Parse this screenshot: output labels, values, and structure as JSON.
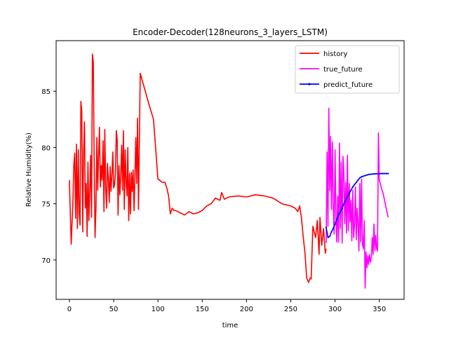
{
  "chart_data": {
    "type": "line",
    "title": "Encoder-Decoder(128neurons_3_layers_LSTM)",
    "xlabel": "time",
    "ylabel": "Relative Humidity(%)",
    "xlim": [
      -15,
      378
    ],
    "ylim": [
      66.5,
      89.5
    ],
    "xticks": [
      0,
      50,
      100,
      150,
      200,
      250,
      300,
      350
    ],
    "yticks": [
      70,
      75,
      80,
      85
    ],
    "grid": false,
    "legend_position": "top-right",
    "series": [
      {
        "name": "history",
        "color": "#ff0000",
        "x": [
          0,
          2,
          4,
          5,
          6,
          7,
          8,
          9,
          10,
          11,
          12,
          13,
          14,
          15,
          16,
          17,
          18,
          19,
          20,
          21,
          22,
          23,
          24,
          25,
          26,
          27,
          28,
          29,
          30,
          31,
          32,
          33,
          34,
          35,
          36,
          37,
          38,
          39,
          40,
          41,
          42,
          43,
          44,
          45,
          46,
          47,
          48,
          49,
          50,
          51,
          52,
          53,
          54,
          55,
          56,
          57,
          58,
          59,
          60,
          61,
          62,
          63,
          64,
          65,
          66,
          67,
          68,
          69,
          70,
          71,
          72,
          73,
          74,
          75,
          76,
          77,
          78,
          80,
          85,
          90,
          95,
          100,
          105,
          108,
          110,
          112,
          114,
          116,
          118,
          120,
          125,
          130,
          135,
          140,
          145,
          150,
          155,
          160,
          165,
          170,
          172,
          175,
          180,
          190,
          200,
          210,
          220,
          230,
          240,
          250,
          255,
          258,
          260,
          262,
          264,
          266,
          268,
          270,
          272,
          273,
          275,
          278,
          280,
          282,
          283,
          285,
          287,
          289,
          290
        ],
        "y": [
          77.1,
          71.4,
          75.3,
          78.4,
          79.5,
          73.7,
          80.3,
          72.8,
          79.8,
          74.2,
          73.1,
          84.1,
          83.2,
          72.5,
          79.4,
          82.3,
          74.6,
          76.8,
          72.1,
          78.7,
          73.5,
          76.1,
          79.3,
          73.8,
          88.3,
          87.6,
          78.2,
          72.0,
          74.6,
          80.9,
          76.2,
          79.4,
          81.8,
          76.5,
          78.4,
          77.1,
          80.6,
          74.3,
          81.6,
          76.3,
          74.6,
          78.6,
          77.2,
          75.1,
          78.3,
          76.1,
          77.5,
          79.6,
          76.4,
          76.7,
          77.8,
          81.5,
          80.7,
          74.0,
          78.4,
          75.8,
          77.4,
          80.2,
          76.2,
          81.5,
          74.5,
          79.8,
          77.0,
          75.7,
          80.0,
          73.5,
          77.7,
          74.1,
          77.8,
          76.1,
          78.0,
          74.4,
          77.3,
          80.9,
          76.8,
          82.6,
          74.5,
          86.6,
          85.2,
          83.8,
          82.5,
          77.2,
          76.9,
          76.9,
          76.4,
          75.7,
          74.1,
          74.6,
          74.4,
          74.4,
          74.2,
          74.0,
          74.3,
          74.1,
          74.2,
          74.4,
          74.8,
          75.0,
          75.5,
          75.3,
          76.0,
          75.4,
          75.6,
          75.7,
          75.6,
          75.8,
          75.7,
          75.5,
          75.0,
          74.8,
          74.6,
          74.3,
          74.8,
          73.8,
          72.1,
          70.7,
          68.4,
          68.0,
          68.4,
          68.3,
          73.0,
          72.0,
          73.5,
          70.5,
          73.8,
          71.3,
          72.8,
          70.6,
          71.0
        ]
      },
      {
        "name": "true_future",
        "color": "#ff00ff",
        "x": [
          290,
          291,
          292,
          293,
          294,
          295,
          296,
          297,
          298,
          299,
          300,
          301,
          302,
          303,
          304,
          305,
          306,
          307,
          308,
          309,
          310,
          311,
          312,
          313,
          314,
          315,
          316,
          317,
          318,
          319,
          320,
          321,
          322,
          323,
          324,
          325,
          326,
          327,
          328,
          329,
          330,
          331,
          332,
          333,
          334,
          335,
          336,
          337,
          338,
          339,
          340,
          341,
          342,
          343,
          344,
          345,
          346,
          347,
          348,
          349,
          350,
          352,
          354,
          356,
          358,
          360
        ],
        "y": [
          71.5,
          79.6,
          73.0,
          83.5,
          76.2,
          81.0,
          74.5,
          80.5,
          74.9,
          72.3,
          79.8,
          74.0,
          71.6,
          75.7,
          71.6,
          80.4,
          72.8,
          78.7,
          71.5,
          79.2,
          77.6,
          73.2,
          76.9,
          72.4,
          79.3,
          72.6,
          76.8,
          73.4,
          75.3,
          71.7,
          76.2,
          72.0,
          73.0,
          76.5,
          71.8,
          74.6,
          73.2,
          70.8,
          76.8,
          71.6,
          77.2,
          71.4,
          71.0,
          73.5,
          67.5,
          70.7,
          69.3,
          70.4,
          69.6,
          70.5,
          69.8,
          70.2,
          72.0,
          70.5,
          73.2,
          70.8,
          72.2,
          71.0,
          70.8,
          81.3,
          77.1,
          76.5,
          76.0,
          75.3,
          74.5,
          73.8
        ]
      },
      {
        "name": "predict_future",
        "color": "#0000ff",
        "x": [
          290,
          292,
          294,
          296,
          298,
          300,
          302,
          304,
          306,
          308,
          310,
          312,
          314,
          316,
          318,
          320,
          322,
          324,
          326,
          328,
          330,
          332,
          334,
          336,
          338,
          340,
          342,
          344,
          346,
          348,
          350,
          352,
          354,
          356,
          358,
          360
        ],
        "y": [
          72.9,
          72.0,
          72.1,
          72.5,
          72.8,
          73.2,
          73.6,
          74.0,
          74.3,
          74.6,
          75.0,
          75.3,
          75.6,
          75.9,
          76.2,
          76.5,
          76.7,
          76.9,
          77.1,
          77.3,
          77.4,
          77.45,
          77.5,
          77.55,
          77.6,
          77.62,
          77.64,
          77.65,
          77.66,
          77.67,
          77.67,
          77.68,
          77.68,
          77.68,
          77.68,
          77.68
        ]
      }
    ]
  }
}
